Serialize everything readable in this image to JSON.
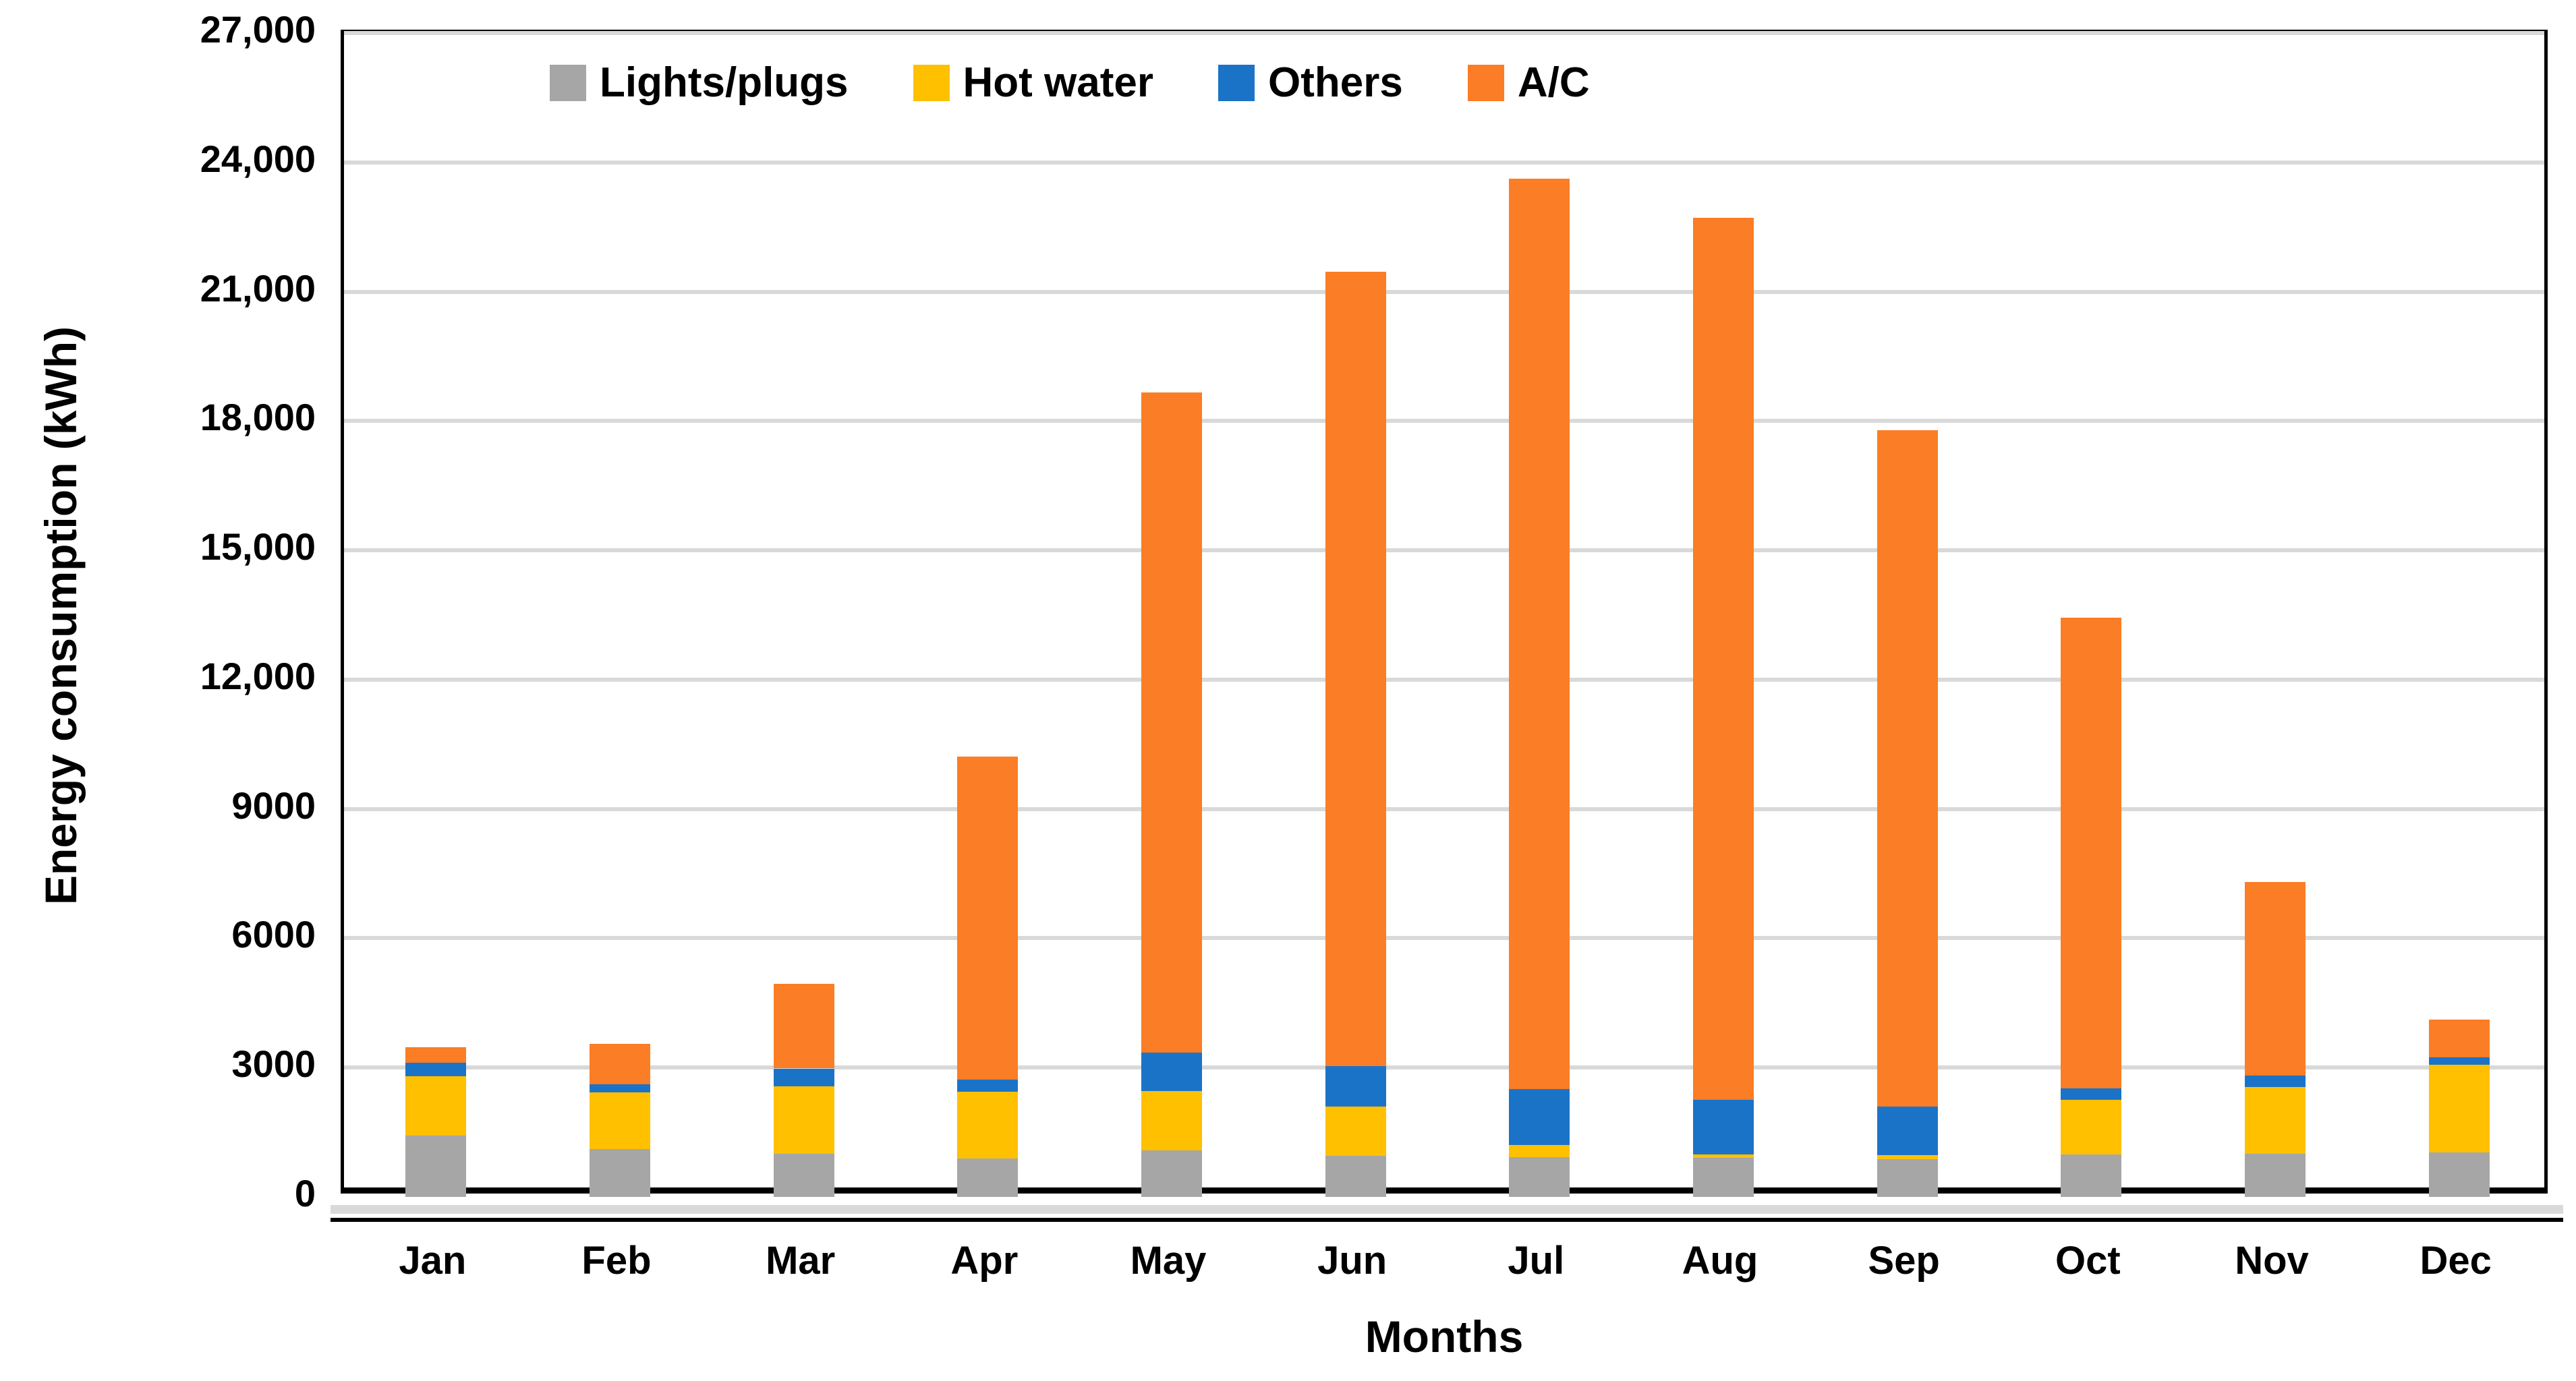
{
  "chart_data": {
    "type": "bar",
    "stacked": true,
    "title": "",
    "xlabel": "Months",
    "ylabel": "Energy consumption (kWh)",
    "categories": [
      "Jan",
      "Feb",
      "Mar",
      "Apr",
      "May",
      "Jun",
      "Jul",
      "Aug",
      "Sep",
      "Oct",
      "Nov",
      "Dec"
    ],
    "series": [
      {
        "name": "Lights/plugs",
        "color": "#A6A6A6",
        "values": [
          1430,
          1110,
          1000,
          890,
          1080,
          950,
          920,
          900,
          880,
          990,
          1000,
          1030
        ]
      },
      {
        "name": "Hot water",
        "color": "#FFC000",
        "values": [
          1370,
          1320,
          1570,
          1550,
          1380,
          1140,
          290,
          90,
          90,
          1270,
          1550,
          2030
        ]
      },
      {
        "name": "Others",
        "color": "#1B73C8",
        "values": [
          320,
          180,
          410,
          280,
          880,
          950,
          1290,
          1270,
          1130,
          260,
          270,
          180
        ]
      },
      {
        "name": "A/C",
        "color": "#FB7D25",
        "values": [
          360,
          940,
          1970,
          7500,
          15330,
          18430,
          21120,
          20460,
          15690,
          10920,
          4490,
          880
        ]
      }
    ],
    "totals": [
      3480,
      3550,
      4950,
      10220,
      18670,
      21470,
      23620,
      22720,
      17790,
      13440,
      7310,
      4120
    ],
    "ylim": [
      0,
      27000
    ],
    "ytick_step": 3000,
    "ytick_labels": [
      "0",
      "3000",
      "6000",
      "9000",
      "12,000",
      "15,000",
      "18,000",
      "21,000",
      "24,000",
      "27,000"
    ],
    "grid": true,
    "gridline_color": "#D9D9D9",
    "legend_position": "top-center"
  }
}
